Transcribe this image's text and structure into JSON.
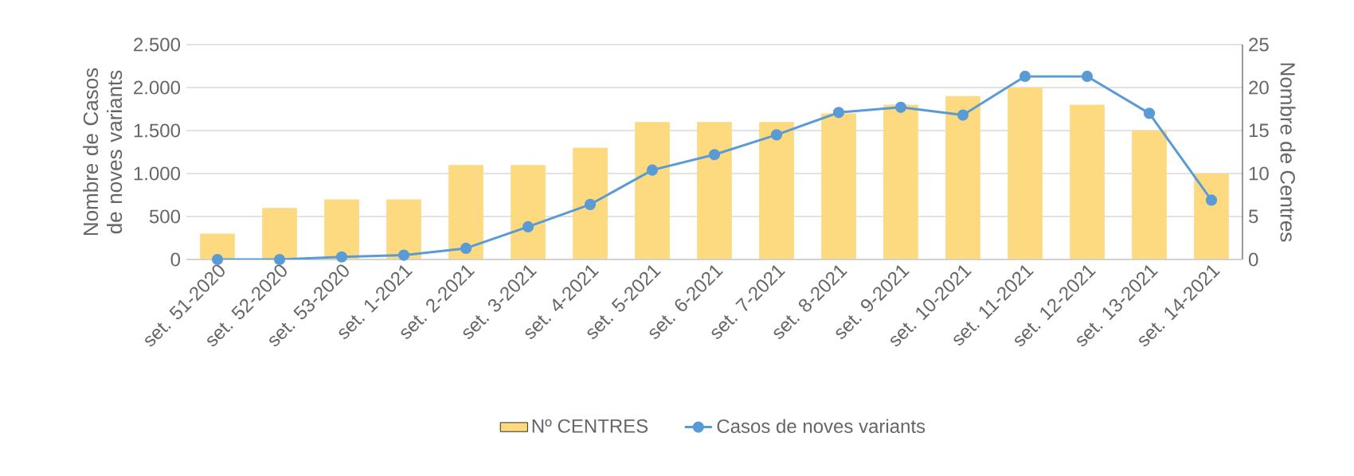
{
  "chart_data": {
    "type": "bar",
    "categories": [
      "set. 51-2020",
      "set. 52-2020",
      "set. 53-2020",
      "set. 1-2021",
      "set. 2-2021",
      "set. 3-2021",
      "set. 4-2021",
      "set. 5-2021",
      "set. 6-2021",
      "set. 7-2021",
      "set. 8-2021",
      "set. 9-2021",
      "set. 10-2021",
      "set. 11-2021",
      "set. 12-2021",
      "set. 13-2021",
      "set. 14-2021"
    ],
    "series": [
      {
        "name": "Nº CENTRES",
        "axis": "y2",
        "color": "#fdd97f",
        "values": [
          3,
          6,
          7,
          7,
          11,
          11,
          13,
          16,
          16,
          16,
          17,
          18,
          19,
          20,
          18,
          15,
          10
        ]
      },
      {
        "name": "Casos de noves variants",
        "type": "line",
        "color": "#5b9bd5",
        "values": [
          0,
          0,
          30,
          50,
          130,
          380,
          640,
          1040,
          1220,
          1450,
          1710,
          1770,
          1680,
          2130,
          2130,
          1700,
          690
        ]
      }
    ],
    "ylabel": "Nombre de Casos de noves variants",
    "y2label": "Nombre de Centres",
    "ylim": [
      0,
      2500
    ],
    "yticks": [
      {
        "value": 0,
        "label": "0"
      },
      {
        "value": 500,
        "label": "500"
      },
      {
        "value": 1000,
        "label": "1.000"
      },
      {
        "value": 1500,
        "label": "1.500"
      },
      {
        "value": 2000,
        "label": "2.000"
      },
      {
        "value": 2500,
        "label": "2.500"
      }
    ],
    "y2lim": [
      0,
      25
    ],
    "y2ticks": [
      0,
      5,
      10,
      15,
      20,
      25
    ],
    "grid": "y",
    "legend": "bottom",
    "marker": "circle",
    "line_style": "solid"
  }
}
